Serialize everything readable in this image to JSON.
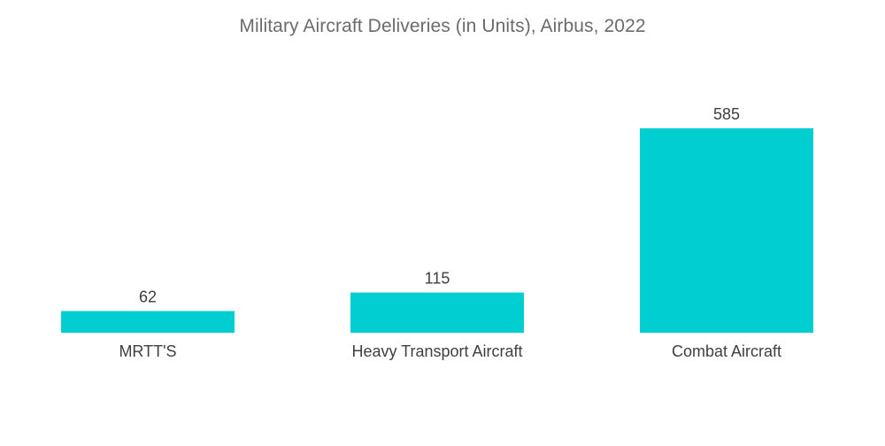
{
  "chart_data": {
    "type": "bar",
    "title": "Military Aircraft Deliveries (in Units), Airbus, 2022",
    "categories": [
      "MRTT'S",
      "Heavy Transport Aircraft",
      "Combat Aircraft"
    ],
    "values": [
      62,
      115,
      585
    ],
    "xlabel": "",
    "ylabel": "",
    "ylim": [
      0,
      585
    ],
    "grid": false,
    "legend": "none",
    "bar_color": "#00ced1"
  }
}
